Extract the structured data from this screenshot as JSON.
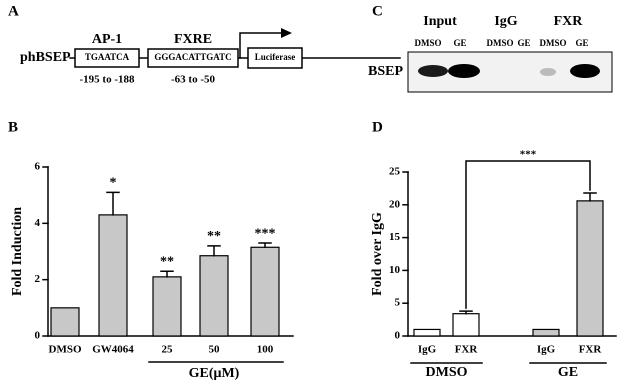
{
  "panel_a": {
    "letter": "A",
    "promoter": "phBSEP",
    "site1_name": "AP-1",
    "site1_seq": "TGAATCA",
    "site1_pos": "-195 to -188",
    "site2_name": "FXRE",
    "site2_seq": "GGGACATTGATC",
    "site2_pos": "-63 to -50",
    "reporter": "Luciferase"
  },
  "panel_c": {
    "letter": "C",
    "groups": [
      "Input",
      "IgG",
      "FXR"
    ],
    "lanes": [
      "DMSO",
      "GE",
      "DMSO",
      "GE",
      "DMSO",
      "GE"
    ],
    "row_label": "BSEP"
  },
  "chart_data": [
    {
      "type": "bar",
      "letter": "B",
      "ylabel": "Fold Induction",
      "categories": [
        "DMSO",
        "GW4064",
        "25",
        "50",
        "100"
      ],
      "values": [
        1,
        4.3,
        2.1,
        2.85,
        3.15
      ],
      "errors": [
        0,
        0.8,
        0.2,
        0.35,
        0.15
      ],
      "significance": [
        null,
        "*",
        "**",
        "**",
        "***"
      ],
      "color": "#c8c8c8",
      "group_label": "GE(μM)",
      "ylim": [
        0,
        6
      ],
      "yticks": [
        0,
        2,
        4,
        6
      ]
    },
    {
      "type": "bar",
      "letter": "D",
      "ylabel": "Fold over IgG",
      "categories": [
        "IgG",
        "FXR",
        "IgG",
        "FXR"
      ],
      "values": [
        1,
        3.4,
        1,
        20.6
      ],
      "errors": [
        0,
        0.4,
        0,
        1.2
      ],
      "colors": [
        "#ffffff",
        "#ffffff",
        "#c8c8c8",
        "#c8c8c8"
      ],
      "groups": [
        "DMSO",
        "GE"
      ],
      "comparison_label": "***",
      "ylim": [
        0,
        25
      ],
      "yticks": [
        0,
        5,
        10,
        15,
        20,
        25
      ]
    }
  ]
}
